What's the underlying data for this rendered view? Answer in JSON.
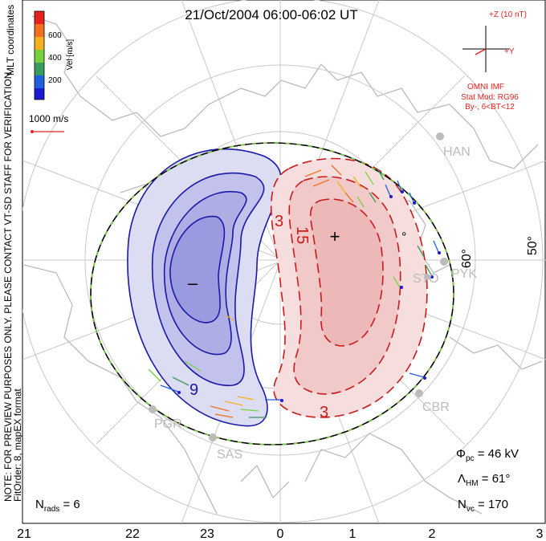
{
  "title": "21/Oct/2004 06:00-06:02 UT",
  "coord_system": "MLT coordinates",
  "velocity_scale": {
    "label": "Vel [m/s]",
    "ticks": [
      "600",
      "400",
      "200"
    ],
    "colors": [
      "#e82020",
      "#f07020",
      "#f5b020",
      "#78d040",
      "#3a9a60",
      "#2060e0",
      "#1a1ad0"
    ]
  },
  "reference_vector": "1000 m/s",
  "imf": {
    "bz_label": "+Z (10 nT)",
    "by_label": "+Y",
    "source": "OMNI IMF",
    "model": "Stat Mod: RG96",
    "model_params": "By-, 6<BT<12"
  },
  "side_note": "NOTE: FOR PREVIEW PURPOSES ONLY. PLEASE CONTACT VT-SD STAFF FOR VERIFICATION.",
  "side_note2": "FitOrder: 8, mapEX format",
  "latitude_labels": [
    "60°",
    "50°"
  ],
  "partial_lat_label": "°",
  "stations": [
    "HAN",
    "PYK",
    "STO",
    "PGR",
    "SAS",
    "CBR"
  ],
  "mlt_ticks": [
    "21",
    "22",
    "23",
    "0",
    "1",
    "2",
    "3"
  ],
  "contour_labels": {
    "neg_9": "9",
    "pos_3_top": "3",
    "pos_15": "15",
    "pos_3_bottom": "3"
  },
  "extrema": {
    "min_symbol": "–",
    "max_symbol": "+"
  },
  "stats": {
    "phi_pc_label": "Φ",
    "phi_pc_sub": "pc",
    "phi_pc_value": " = 46 kV",
    "lambda_label": "Λ",
    "lambda_sub": "HM",
    "lambda_value": " = 61°",
    "nvc_label": "N",
    "nvc_sub": "vc",
    "nvc_value": " = 170",
    "nrads_label": "N",
    "nrads_sub": "rads",
    "nrads_value": " = 6"
  },
  "colors": {
    "negative_cell": "#1a1aa8",
    "positive_cell": "#cc1a1a",
    "grid": "#c8c8c8",
    "coast": "#bbbbbb",
    "hmb_dash": "#7acc3a"
  }
}
